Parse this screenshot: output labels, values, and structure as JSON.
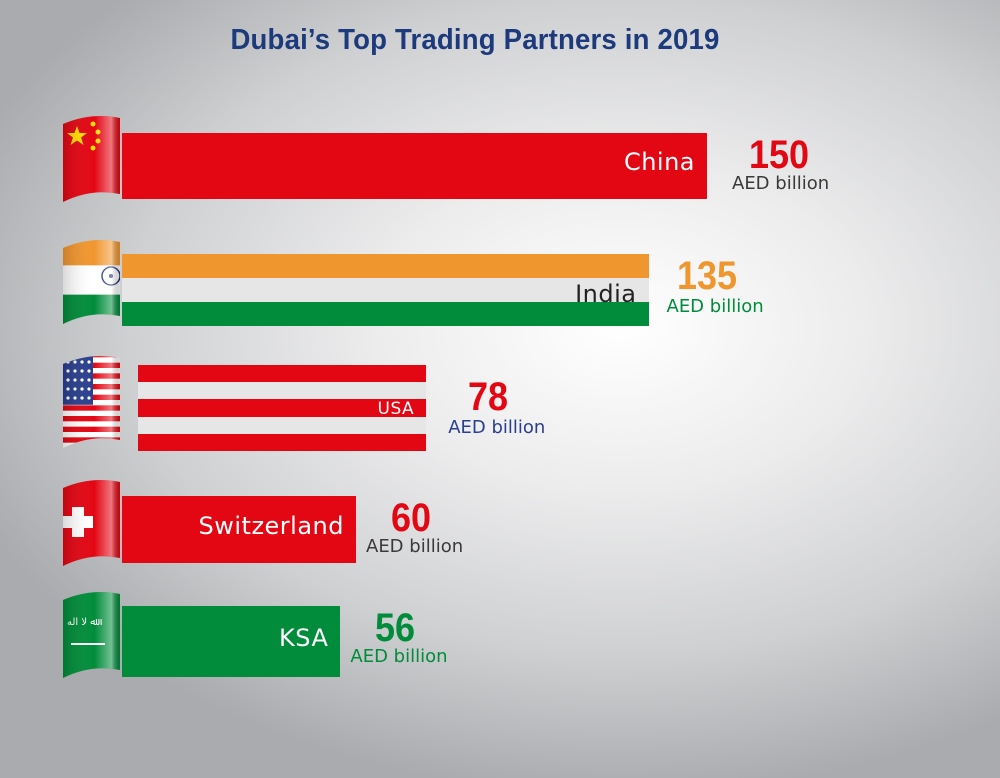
{
  "chart_data": {
    "type": "bar",
    "orientation": "horizontal",
    "title": "Dubai’s Top Trading Partners in 2019",
    "categories": [
      "China",
      "India",
      "USA",
      "Switzerland",
      "KSA"
    ],
    "values": [
      150,
      135,
      78,
      60,
      56
    ],
    "unit": "AED billion",
    "value_labels": [
      "150",
      "135",
      "78",
      "60",
      "56"
    ],
    "flags": [
      "china-flag",
      "india-flag",
      "usa-flag",
      "switzerland-flag",
      "saudi-arabia-flag"
    ],
    "colors": {
      "title": "#1d3a7c",
      "red": "#e30613",
      "orange": "#f0962f",
      "green": "#008c3a",
      "blue": "#2a3f8f",
      "gray_text": "#3a3a3a",
      "light": "#e6e6e6"
    },
    "grid": false,
    "legend": "none"
  }
}
